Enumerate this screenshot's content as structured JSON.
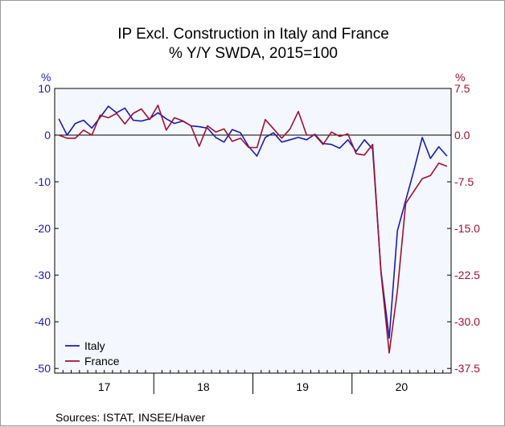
{
  "title": "IP Excl. Construction in Italy and France",
  "subtitle": "% Y/Y   SWDA, 2015=100",
  "source": "Sources:  ISTAT, INSEE/Haver",
  "colors": {
    "italy": "#1a1ab4",
    "france": "#a01030",
    "plot_bg": "#f4f8fe",
    "frame": "#000000"
  },
  "chart_data": {
    "type": "line",
    "title": "IP Excl. Construction in Italy and France",
    "subtitle": "% Y/Y   SWDA, 2015=100",
    "grid": false,
    "legend_position": "bottom-left",
    "x_tick_labels": [
      "17",
      "18",
      "19",
      "20"
    ],
    "x_start": "2017-01",
    "x_end": "2020-12",
    "left_axis": {
      "unit": "%",
      "ylim": [
        -51,
        10
      ],
      "ticks": [
        10,
        0,
        -10,
        -20,
        -30,
        -40,
        -50
      ],
      "tick_labels": [
        "10",
        "0",
        "-10",
        "-20",
        "-30",
        "-40",
        "-50"
      ],
      "color": "#1a1ab4"
    },
    "right_axis": {
      "unit": "%",
      "ylim": [
        -38.25,
        7.5
      ],
      "ticks": [
        7.5,
        0.0,
        -7.5,
        -15.0,
        -22.5,
        -30.0,
        -37.5
      ],
      "tick_labels": [
        "7.5",
        "0.0",
        "-7.5",
        "-15.0",
        "-22.5",
        "-30.0",
        "-37.5"
      ],
      "color": "#a01030"
    },
    "months": [
      "2017-01",
      "2017-02",
      "2017-03",
      "2017-04",
      "2017-05",
      "2017-06",
      "2017-07",
      "2017-08",
      "2017-09",
      "2017-10",
      "2017-11",
      "2017-12",
      "2018-01",
      "2018-02",
      "2018-03",
      "2018-04",
      "2018-05",
      "2018-06",
      "2018-07",
      "2018-08",
      "2018-09",
      "2018-10",
      "2018-11",
      "2018-12",
      "2019-01",
      "2019-02",
      "2019-03",
      "2019-04",
      "2019-05",
      "2019-06",
      "2019-07",
      "2019-08",
      "2019-09",
      "2019-10",
      "2019-11",
      "2019-12",
      "2020-01",
      "2020-02",
      "2020-03",
      "2020-04",
      "2020-05",
      "2020-06",
      "2020-07",
      "2020-08",
      "2020-09",
      "2020-10",
      "2020-11",
      "2020-12"
    ],
    "series": [
      {
        "name": "Italy",
        "axis": "left",
        "color": "#1a1ab4",
        "values": [
          3.5,
          0.0,
          2.5,
          3.2,
          1.5,
          3.8,
          6.2,
          4.8,
          5.8,
          3.2,
          3.0,
          3.5,
          4.8,
          3.5,
          2.5,
          3.0,
          2.0,
          1.8,
          1.5,
          -0.5,
          -1.5,
          1.2,
          0.5,
          -2.5,
          -4.5,
          -0.5,
          0.5,
          -1.5,
          -1.0,
          -0.5,
          -1.0,
          0.2,
          -1.8,
          -2.0,
          -2.8,
          -1.0,
          -3.5,
          -1.0,
          -3.0,
          -29.0,
          -43.5,
          -20.5,
          -14.0,
          -7.5,
          -0.5,
          -5.0,
          -2.5,
          -4.5
        ]
      },
      {
        "name": "France",
        "axis": "right",
        "color": "#a01030",
        "values": [
          0.0,
          -0.5,
          -0.5,
          0.8,
          0.0,
          3.2,
          2.8,
          3.5,
          1.8,
          3.5,
          4.2,
          2.5,
          4.8,
          0.8,
          2.8,
          2.3,
          1.5,
          -1.8,
          1.5,
          0.5,
          1.0,
          -1.0,
          -0.5,
          -2.0,
          -2.0,
          2.5,
          1.0,
          -0.5,
          1.0,
          3.8,
          0.0,
          0.0,
          -1.5,
          0.5,
          -0.2,
          0.2,
          -3.0,
          -3.2,
          -1.5,
          -22.0,
          -35.0,
          -25.0,
          -11.0,
          -9.0,
          -7.0,
          -6.5,
          -4.5,
          -5.0
        ]
      }
    ]
  }
}
